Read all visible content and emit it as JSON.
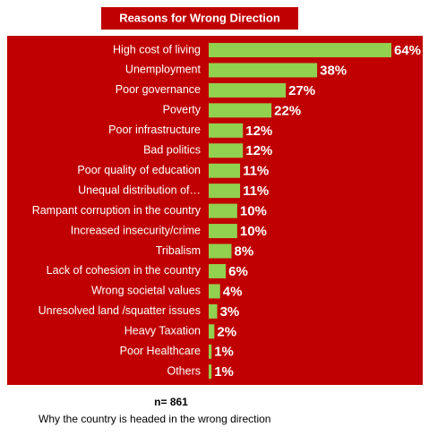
{
  "chart_data": {
    "type": "bar",
    "orientation": "horizontal",
    "title": "Reasons for Wrong Direction",
    "categories": [
      "High cost of living",
      "Unemployment",
      "Poor governance",
      "Poverty",
      "Poor infrastructure",
      "Bad politics",
      "Poor quality of education",
      "Unequal distribution of…",
      "Rampant corruption in the country",
      "Increased insecurity/crime",
      "Tribalism",
      "Lack of cohesion in the country",
      "Wrong societal values",
      "Unresolved land /squatter issues",
      "Heavy Taxation",
      "Poor Healthcare",
      "Others"
    ],
    "values": [
      64,
      38,
      27,
      22,
      12,
      12,
      11,
      11,
      10,
      10,
      8,
      6,
      4,
      3,
      2,
      1,
      1
    ],
    "value_labels": [
      "64%",
      "38%",
      "27%",
      "22%",
      "12%",
      "12%",
      "11%",
      "11%",
      "10%",
      "10%",
      "8%",
      "6%",
      "4%",
      "3%",
      "2%",
      "1%",
      "1%"
    ],
    "color": "#92d050",
    "background": "#c00000",
    "sample_note": "n= 861",
    "caption": "Why the country is headed in the wrong direction"
  }
}
